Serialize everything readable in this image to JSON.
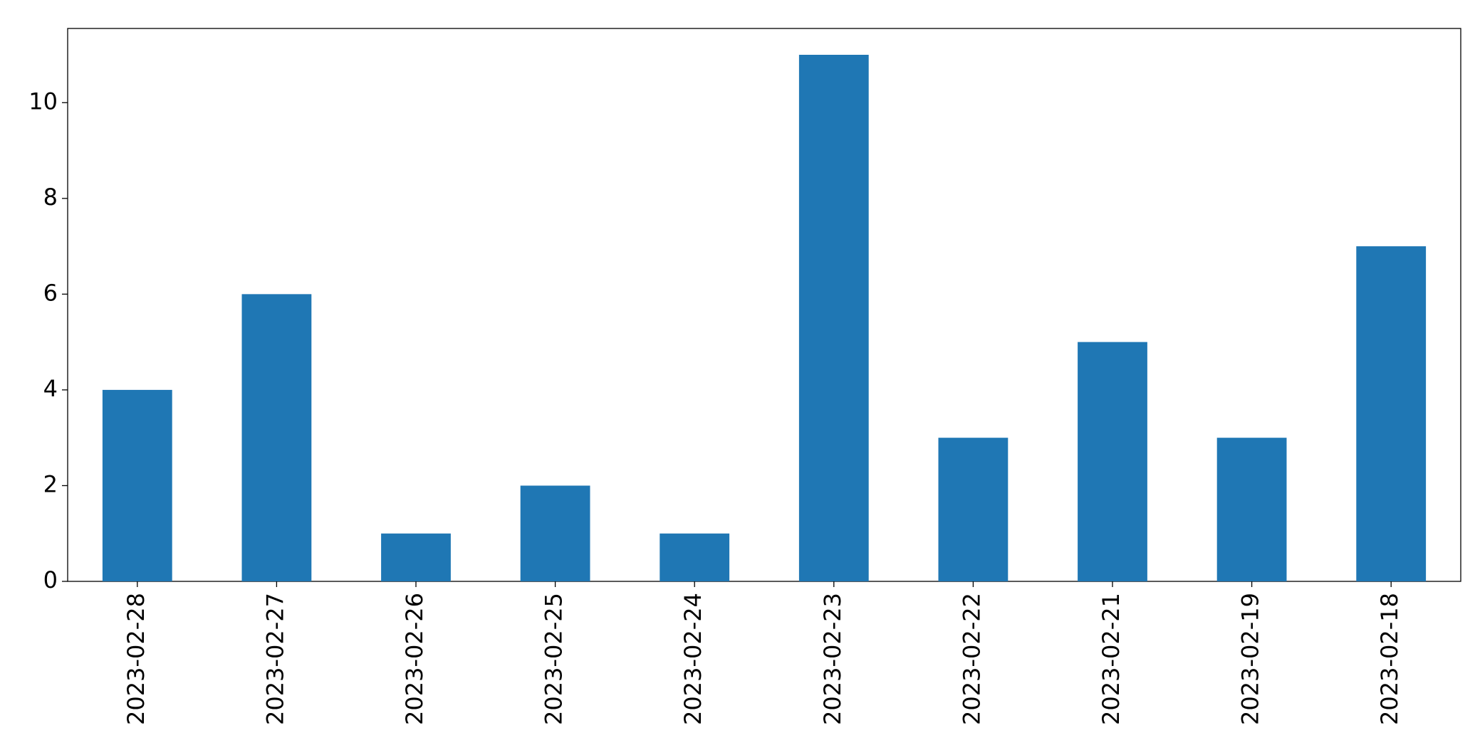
{
  "chart_data": {
    "type": "bar",
    "categories": [
      "2023-02-28",
      "2023-02-27",
      "2023-02-26",
      "2023-02-25",
      "2023-02-24",
      "2023-02-23",
      "2023-02-22",
      "2023-02-21",
      "2023-02-19",
      "2023-02-18"
    ],
    "values": [
      4,
      6,
      1,
      2,
      1,
      11,
      3,
      5,
      3,
      7
    ],
    "color": "#1f77b4",
    "ylim": [
      0,
      11.55
    ],
    "yticks": [
      0,
      2,
      4,
      6,
      8,
      10
    ],
    "grid": false
  }
}
